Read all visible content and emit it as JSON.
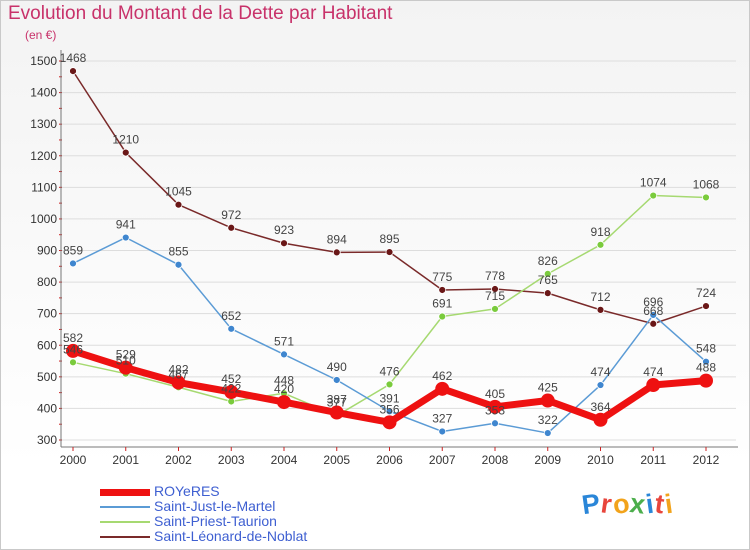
{
  "title": "Evolution du Montant de la Dette par Habitant",
  "unit_label": "(en €)",
  "logo": {
    "letters": [
      "P",
      "r",
      "o",
      "x",
      "i",
      "t",
      "i"
    ],
    "colors": [
      "#2a86d8",
      "#e8453c",
      "#f2a31b",
      "#4cae4c",
      "#2a86d8",
      "#e8453c",
      "#f2a31b"
    ]
  },
  "chart_data": {
    "type": "line",
    "x": [
      "2000",
      "2001",
      "2002",
      "2003",
      "2004",
      "2005",
      "2006",
      "2007",
      "2008",
      "2009",
      "2010",
      "2011",
      "2012"
    ],
    "ylim": [
      300,
      1500
    ],
    "yticks": [
      300,
      400,
      500,
      600,
      700,
      800,
      900,
      1000,
      1100,
      1200,
      1300,
      1400,
      1500
    ],
    "grid": "horizontal",
    "legend_position": "bottom-left",
    "series": [
      {
        "name": "Saint-Léonard-de-Noblat",
        "color": "#7a2a2a",
        "marker": "#6a1717",
        "width": 1.5,
        "values": [
          1468,
          1210,
          1045,
          972,
          923,
          894,
          895,
          775,
          778,
          765,
          712,
          668,
          724
        ]
      },
      {
        "name": "Saint-Priest-Taurion",
        "color": "#a6d971",
        "marker": "#7acb3c",
        "width": 1.5,
        "values": [
          546,
          510,
          467,
          422,
          448,
          377,
          476,
          691,
          715,
          826,
          918,
          1074,
          1068
        ]
      },
      {
        "name": "Saint-Just-le-Martel",
        "color": "#5b9bd5",
        "marker": "#3f86cf",
        "width": 1.5,
        "values": [
          859,
          941,
          855,
          652,
          571,
          490,
          391,
          327,
          353,
          322,
          474,
          696,
          548
        ]
      },
      {
        "name": "ROYeRES",
        "color": "#ee1111",
        "marker": "#ee1111",
        "width": 7,
        "values": [
          582,
          529,
          482,
          452,
          420,
          387,
          356,
          462,
          405,
          425,
          364,
          474,
          488
        ]
      }
    ],
    "legend": [
      "ROYeRES",
      "Saint-Just-le-Martel",
      "Saint-Priest-Taurion",
      "Saint-Léonard-de-Noblat"
    ]
  }
}
